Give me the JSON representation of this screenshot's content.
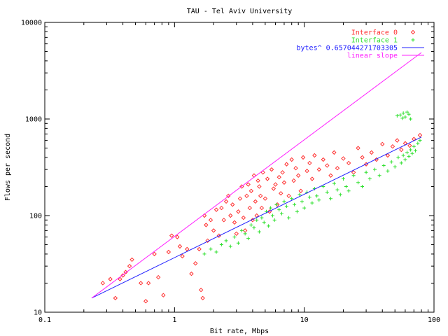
{
  "chart_data": {
    "type": "scatter",
    "title": "TAU - Tel Aviv University",
    "xlabel": "Bit rate, Mbps",
    "ylabel": "Flows per second",
    "xscale": "log",
    "yscale": "log",
    "xlim": [
      0.1,
      100
    ],
    "ylim": [
      10,
      10000
    ],
    "x_ticks": [
      "0.1",
      "1",
      "10",
      "100"
    ],
    "y_ticks": [
      "10",
      "100",
      "1000",
      "10000"
    ],
    "grid": false,
    "legend_position": "top-right",
    "series": [
      {
        "name": "Interface 0",
        "kind": "points",
        "marker": "diamond",
        "color": "#ff3030",
        "points": [
          [
            0.28,
            20
          ],
          [
            0.32,
            22
          ],
          [
            0.35,
            14
          ],
          [
            0.38,
            22
          ],
          [
            0.4,
            24
          ],
          [
            0.42,
            26
          ],
          [
            0.45,
            30
          ],
          [
            0.47,
            35
          ],
          [
            0.55,
            20
          ],
          [
            0.6,
            13
          ],
          [
            0.63,
            20
          ],
          [
            0.7,
            40
          ],
          [
            0.75,
            23
          ],
          [
            0.82,
            15
          ],
          [
            0.9,
            42
          ],
          [
            0.95,
            62
          ],
          [
            1.05,
            60
          ],
          [
            1.1,
            48
          ],
          [
            1.15,
            38
          ],
          [
            1.25,
            45
          ],
          [
            1.35,
            25
          ],
          [
            1.45,
            32
          ],
          [
            1.55,
            45
          ],
          [
            1.6,
            17
          ],
          [
            1.65,
            14
          ],
          [
            1.7,
            100
          ],
          [
            1.75,
            80
          ],
          [
            1.8,
            55
          ],
          [
            1.9,
            90
          ],
          [
            2.0,
            70
          ],
          [
            2.1,
            115
          ],
          [
            2.2,
            62
          ],
          [
            2.3,
            120
          ],
          [
            2.4,
            90
          ],
          [
            2.5,
            140
          ],
          [
            2.6,
            160
          ],
          [
            2.7,
            100
          ],
          [
            2.8,
            130
          ],
          [
            2.9,
            85
          ],
          [
            3.0,
            65
          ],
          [
            3.1,
            110
          ],
          [
            3.2,
            150
          ],
          [
            3.3,
            200
          ],
          [
            3.4,
            95
          ],
          [
            3.5,
            70
          ],
          [
            3.6,
            160
          ],
          [
            3.7,
            210
          ],
          [
            3.8,
            120
          ],
          [
            3.9,
            180
          ],
          [
            4.0,
            90
          ],
          [
            4.1,
            260
          ],
          [
            4.2,
            140
          ],
          [
            4.3,
            100
          ],
          [
            4.4,
            230
          ],
          [
            4.5,
            200
          ],
          [
            4.6,
            160
          ],
          [
            4.7,
            120
          ],
          [
            4.8,
            280
          ],
          [
            5.0,
            150
          ],
          [
            5.2,
            240
          ],
          [
            5.4,
            110
          ],
          [
            5.6,
            300
          ],
          [
            5.8,
            190
          ],
          [
            6.0,
            210
          ],
          [
            6.2,
            130
          ],
          [
            6.4,
            250
          ],
          [
            6.6,
            170
          ],
          [
            6.8,
            280
          ],
          [
            7.0,
            220
          ],
          [
            7.3,
            340
          ],
          [
            7.6,
            160
          ],
          [
            8.0,
            380
          ],
          [
            8.3,
            230
          ],
          [
            8.6,
            310
          ],
          [
            9.0,
            260
          ],
          [
            9.4,
            180
          ],
          [
            9.8,
            400
          ],
          [
            10.5,
            290
          ],
          [
            11.0,
            350
          ],
          [
            11.5,
            240
          ],
          [
            12.0,
            420
          ],
          [
            13.0,
            300
          ],
          [
            14.0,
            380
          ],
          [
            15.0,
            330
          ],
          [
            16.0,
            260
          ],
          [
            17.0,
            450
          ],
          [
            18.0,
            310
          ],
          [
            20.0,
            390
          ],
          [
            22.0,
            350
          ],
          [
            24.0,
            280
          ],
          [
            26.0,
            500
          ],
          [
            28.0,
            400
          ],
          [
            30.0,
            340
          ],
          [
            33.0,
            450
          ],
          [
            36.0,
            380
          ],
          [
            40.0,
            550
          ],
          [
            44.0,
            420
          ],
          [
            48.0,
            520
          ],
          [
            52.0,
            600
          ],
          [
            56.0,
            480
          ],
          [
            60.0,
            560
          ],
          [
            65.0,
            530
          ],
          [
            70.0,
            620
          ],
          [
            78.0,
            680
          ]
        ]
      },
      {
        "name": "Interface 1",
        "kind": "points",
        "marker": "plus",
        "color": "#30e030",
        "points": [
          [
            1.7,
            40
          ],
          [
            1.9,
            45
          ],
          [
            2.1,
            42
          ],
          [
            2.3,
            50
          ],
          [
            2.5,
            55
          ],
          [
            2.7,
            48
          ],
          [
            2.9,
            60
          ],
          [
            3.1,
            52
          ],
          [
            3.3,
            70
          ],
          [
            3.5,
            65
          ],
          [
            3.7,
            58
          ],
          [
            3.9,
            80
          ],
          [
            4.1,
            75
          ],
          [
            4.3,
            90
          ],
          [
            4.5,
            68
          ],
          [
            4.7,
            95
          ],
          [
            4.9,
            85
          ],
          [
            5.1,
            110
          ],
          [
            5.3,
            78
          ],
          [
            5.5,
            120
          ],
          [
            5.7,
            100
          ],
          [
            5.9,
            90
          ],
          [
            6.1,
            130
          ],
          [
            6.4,
            115
          ],
          [
            6.7,
            105
          ],
          [
            7.0,
            140
          ],
          [
            7.3,
            125
          ],
          [
            7.6,
            95
          ],
          [
            8.0,
            150
          ],
          [
            8.4,
            130
          ],
          [
            8.8,
            110
          ],
          [
            9.2,
            165
          ],
          [
            9.6,
            140
          ],
          [
            10.0,
            120
          ],
          [
            10.5,
            175
          ],
          [
            11.0,
            155
          ],
          [
            11.5,
            135
          ],
          [
            12.0,
            190
          ],
          [
            12.5,
            160
          ],
          [
            13.0,
            145
          ],
          [
            14.0,
            200
          ],
          [
            15.0,
            175
          ],
          [
            16.0,
            150
          ],
          [
            17.0,
            215
          ],
          [
            18.0,
            185
          ],
          [
            19.0,
            165
          ],
          [
            20.0,
            240
          ],
          [
            21.0,
            200
          ],
          [
            22.0,
            180
          ],
          [
            24.0,
            260
          ],
          [
            26.0,
            220
          ],
          [
            28.0,
            200
          ],
          [
            30.0,
            280
          ],
          [
            32.0,
            240
          ],
          [
            35.0,
            300
          ],
          [
            38.0,
            260
          ],
          [
            41.0,
            330
          ],
          [
            44.0,
            290
          ],
          [
            47.0,
            360
          ],
          [
            50.0,
            320
          ],
          [
            53.0,
            400
          ],
          [
            56.0,
            350
          ],
          [
            58.0,
            420
          ],
          [
            60.0,
            380
          ],
          [
            62.0,
            450
          ],
          [
            64.0,
            410
          ],
          [
            66.0,
            480
          ],
          [
            68.0,
            440
          ],
          [
            70.0,
            520
          ],
          [
            72.0,
            470
          ],
          [
            75.0,
            560
          ],
          [
            78.0,
            600
          ],
          [
            55.0,
            1100
          ],
          [
            58.0,
            1150
          ],
          [
            60.0,
            1050
          ],
          [
            62.0,
            1180
          ],
          [
            64.0,
            1120
          ],
          [
            66.0,
            1000
          ],
          [
            52.0,
            1080
          ],
          [
            57.0,
            1020
          ]
        ]
      },
      {
        "name": "bytes^ 0.657044271703305",
        "kind": "line",
        "color": "#2020ff",
        "points": [
          [
            0.23,
            14
          ],
          [
            80,
            650
          ]
        ]
      },
      {
        "name": "linear slope",
        "kind": "line",
        "color": "#ff20ff",
        "points": [
          [
            0.23,
            14
          ],
          [
            80,
            4870
          ]
        ]
      }
    ]
  }
}
